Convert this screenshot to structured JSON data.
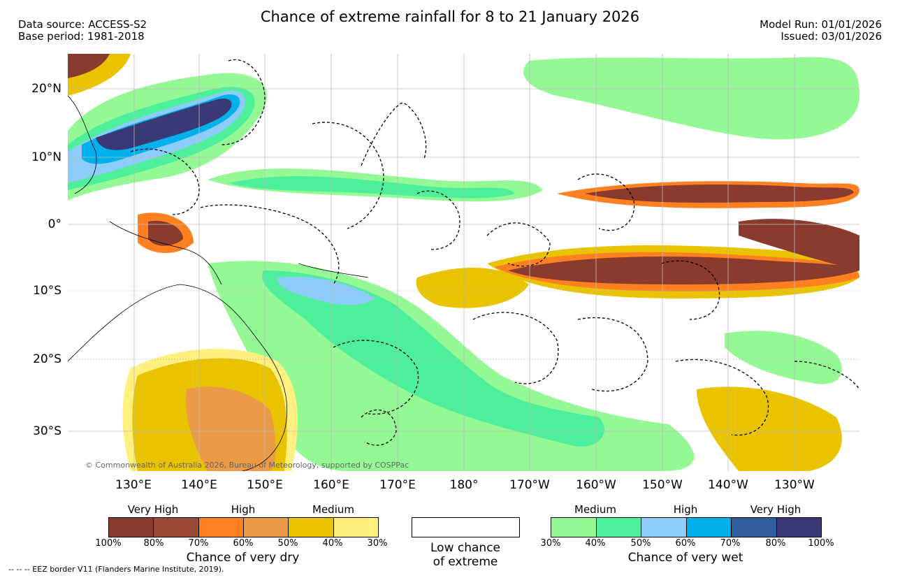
{
  "header": {
    "title": "Chance of extreme rainfall for 8 to 21 January 2026",
    "data_source": "Data source: ACCESS-S2",
    "base_period": "Base period: 1981-2018",
    "model_run": "Model Run: 01/01/2026",
    "issued": "Issued: 03/01/2026"
  },
  "map": {
    "lon_labels": [
      "130°E",
      "140°E",
      "150°E",
      "160°E",
      "170°E",
      "180°",
      "170°W",
      "160°W",
      "150°W",
      "140°W",
      "130°W"
    ],
    "lat_labels": [
      "20°N",
      "10°N",
      "0°",
      "10°S",
      "20°S",
      "30°S"
    ],
    "copyright": "© Commonwealth of Australia 2026, Bureau of Meteorology, supported by COSPPac"
  },
  "legend": {
    "dry": {
      "categories": [
        "Very High",
        "High",
        "Medium"
      ],
      "colors": [
        "#8b3a2e",
        "#9a4a34",
        "#ff8020",
        "#eb9a48",
        "#e9c300",
        "#fff080"
      ],
      "ticks": [
        "100%",
        "80%",
        "70%",
        "60%",
        "50%",
        "40%",
        "30%"
      ],
      "caption": "Chance of very dry"
    },
    "low": {
      "caption_line1": "Low chance",
      "caption_line2": "of extreme"
    },
    "wet": {
      "categories": [
        "Medium",
        "High",
        "Very High"
      ],
      "colors": [
        "#94f994",
        "#4def9b",
        "#8ccbfa",
        "#00b0ec",
        "#2e5ea0",
        "#3b3876"
      ],
      "ticks": [
        "30%",
        "40%",
        "50%",
        "60%",
        "70%",
        "80%",
        "100%"
      ],
      "caption": "Chance of very wet"
    }
  },
  "footnote": "-- -- -- EEZ border V11 (Flanders Marine Institute, 2019)."
}
